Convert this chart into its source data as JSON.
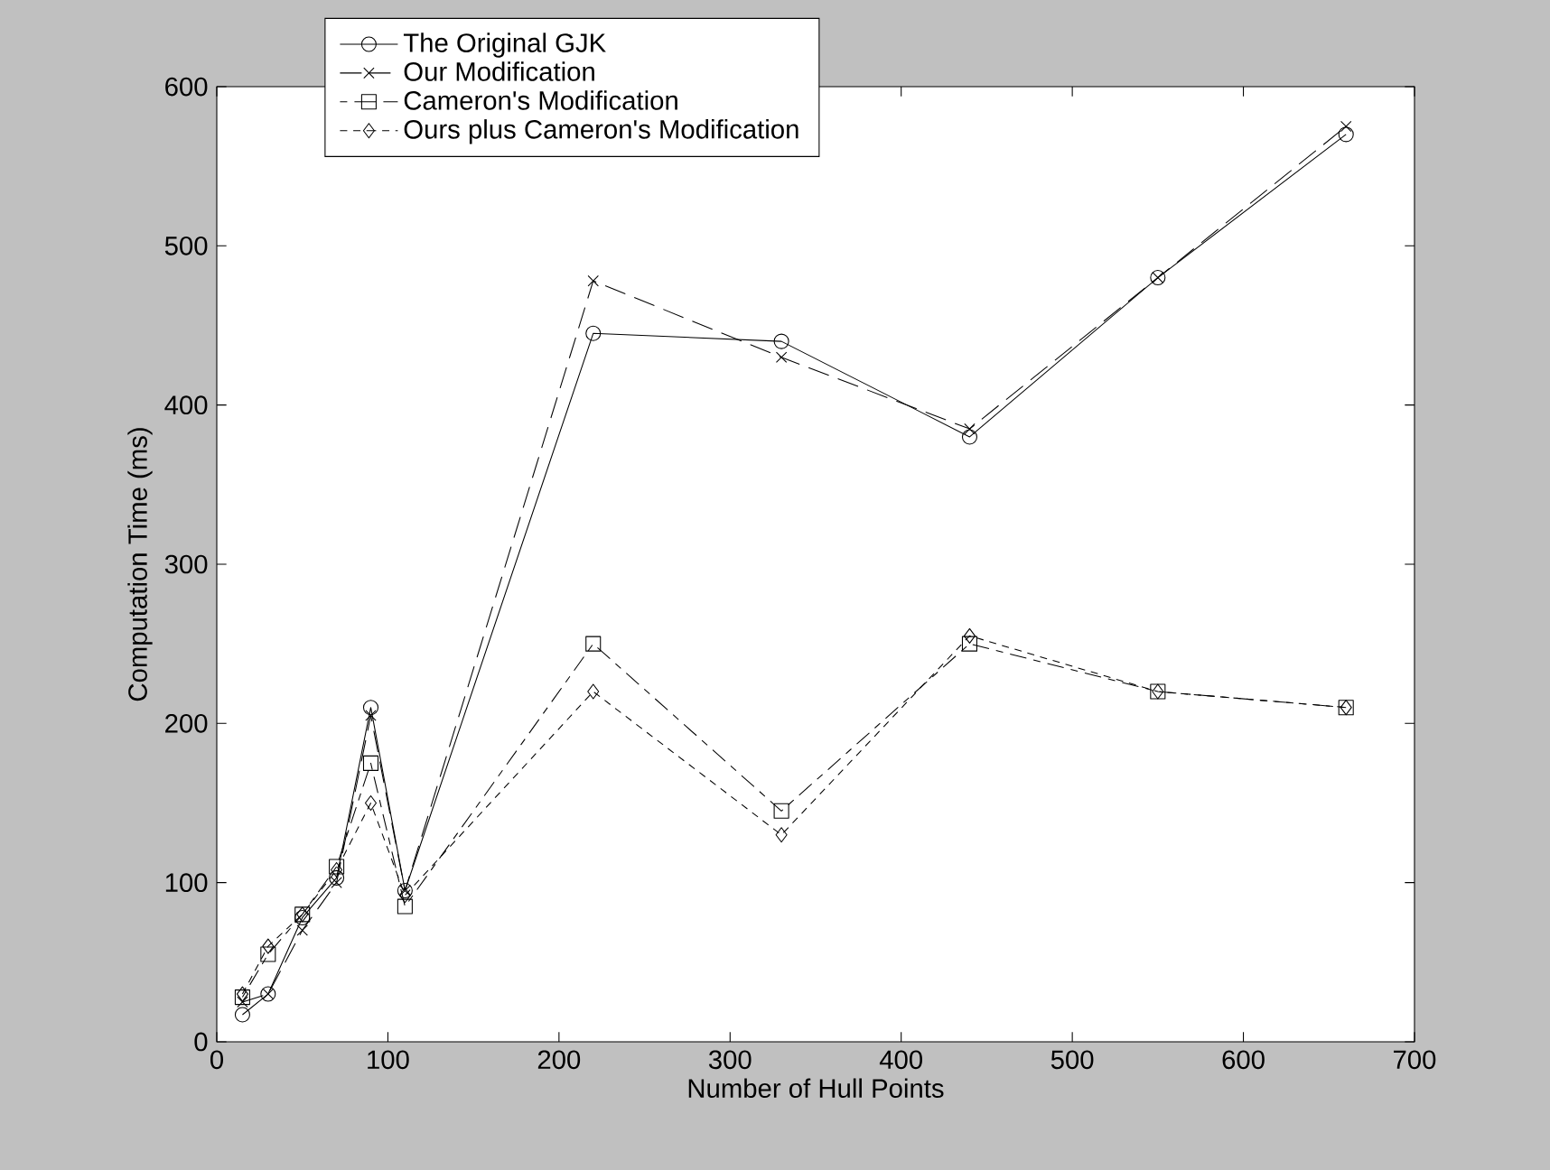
{
  "chart_data": {
    "type": "line",
    "xlabel": "Number of Hull Points",
    "ylabel": "Computation Time (ms)",
    "x": [
      15,
      30,
      50,
      70,
      90,
      110,
      220,
      330,
      440,
      550,
      660
    ],
    "series": [
      {
        "name": "The Original GJK",
        "color": "#000000",
        "marker": "circle",
        "line_style": "solid",
        "values": [
          17,
          30,
          78,
          103,
          210,
          95,
          445,
          440,
          380,
          480,
          570
        ]
      },
      {
        "name": "Our Modification",
        "color": "#000000",
        "marker": "cross",
        "line_style": "dashed",
        "values": [
          25,
          30,
          70,
          100,
          205,
          95,
          478,
          430,
          385,
          480,
          575
        ]
      },
      {
        "name": "Cameron's Modification",
        "color": "#000000",
        "marker": "square",
        "line_style": "dashed",
        "values": [
          28,
          55,
          80,
          110,
          175,
          85,
          250,
          145,
          250,
          220,
          210
        ]
      },
      {
        "name": "Ours plus Cameron's Modification",
        "color": "#000000",
        "marker": "diamond",
        "line_style": "dotted",
        "values": [
          30,
          60,
          80,
          108,
          150,
          92,
          220,
          130,
          255,
          220,
          210
        ]
      }
    ],
    "xlim": [
      0,
      700
    ],
    "ylim": [
      0,
      600
    ],
    "xticks": [
      0,
      100,
      200,
      300,
      400,
      500,
      600,
      700
    ],
    "yticks": [
      0,
      100,
      200,
      300,
      400,
      500,
      600
    ],
    "grid": false,
    "legend": "top left"
  }
}
